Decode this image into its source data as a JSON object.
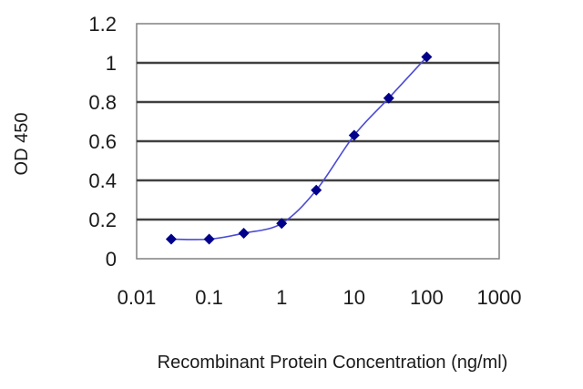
{
  "chart_data": {
    "type": "scatter",
    "title": "",
    "xlabel": "Recombinant Protein Concentration (ng/ml)",
    "ylabel": "OD 450",
    "xscale": "log",
    "xlim": [
      0.01,
      1000
    ],
    "ylim": [
      0,
      1.2
    ],
    "x_ticks": [
      0.01,
      0.1,
      1,
      10,
      100,
      1000
    ],
    "x_tick_labels": [
      "0.01",
      "0.1",
      "1",
      "10",
      "100",
      "1000"
    ],
    "y_ticks": [
      0,
      0.2,
      0.4,
      0.6,
      0.8,
      1,
      1.2
    ],
    "y_tick_labels": [
      "0",
      "0.2",
      "0.4",
      "0.6",
      "0.8",
      "1",
      "1.2"
    ],
    "grid": "horizontal",
    "legend": "none",
    "fit_curve": true,
    "series": [
      {
        "x": [
          0.03,
          0.1,
          0.3,
          1,
          3,
          10,
          30,
          100
        ],
        "y": [
          0.1,
          0.1,
          0.13,
          0.18,
          0.35,
          0.63,
          0.82,
          1.03
        ],
        "color": "#00008b"
      }
    ]
  }
}
